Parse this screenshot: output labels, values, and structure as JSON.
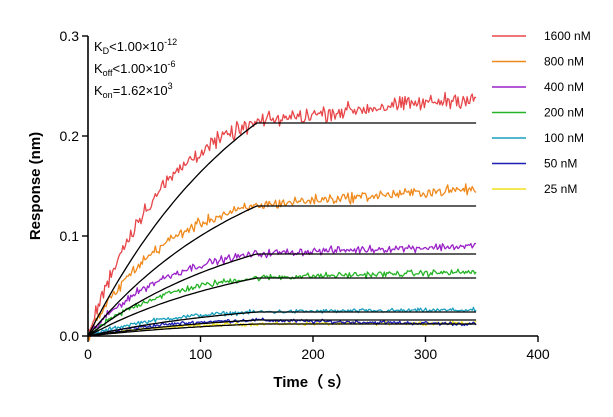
{
  "chart_data": {
    "type": "line",
    "title": "",
    "xlabel": "Time（ s）",
    "ylabel": "Response (nm)",
    "xlim": [
      0,
      400
    ],
    "ylim": [
      0,
      0.3
    ],
    "x_ticks": [
      0,
      100,
      200,
      300,
      400
    ],
    "y_ticks": [
      0.0,
      0.1,
      0.2,
      0.3
    ],
    "x_tick_labels": [
      "0",
      "100",
      "200",
      "300",
      "400"
    ],
    "y_tick_labels": [
      "0.0",
      "0.1",
      "0.2",
      "0.3"
    ],
    "grid": false,
    "legend_position": "right",
    "annotations": {
      "kd": {
        "prefix": "K",
        "sub": "D",
        "op": "<",
        "value": "1.00×10",
        "exp": "-12"
      },
      "koff": {
        "prefix": "K",
        "sub": "off",
        "op": "<",
        "value": "1.00×10",
        "exp": "-6"
      },
      "kon": {
        "prefix": "K",
        "sub": "on",
        "op": "=",
        "value": "1.62×10",
        "exp": "3"
      }
    },
    "association_end": 150,
    "dissociation_end": 345,
    "series": [
      {
        "name": "1600 nM",
        "color": "#e8474a",
        "plateau": 0.213,
        "end_value": 0.238
      },
      {
        "name": "800 nM",
        "color": "#f08a1c",
        "plateau": 0.13,
        "end_value": 0.147
      },
      {
        "name": "400 nM",
        "color": "#9b22c8",
        "plateau": 0.082,
        "end_value": 0.09
      },
      {
        "name": "200 nM",
        "color": "#25b425",
        "plateau": 0.058,
        "end_value": 0.064
      },
      {
        "name": "100 nM",
        "color": "#1aa0be",
        "plateau": 0.024,
        "end_value": 0.026
      },
      {
        "name": "50 nM",
        "color": "#1c1fb4",
        "plateau": 0.016,
        "end_value": 0.012
      },
      {
        "name": "25 nM",
        "color": "#f2e21a",
        "plateau": 0.012,
        "end_value": 0.013
      }
    ],
    "fit_color": "#000000"
  }
}
